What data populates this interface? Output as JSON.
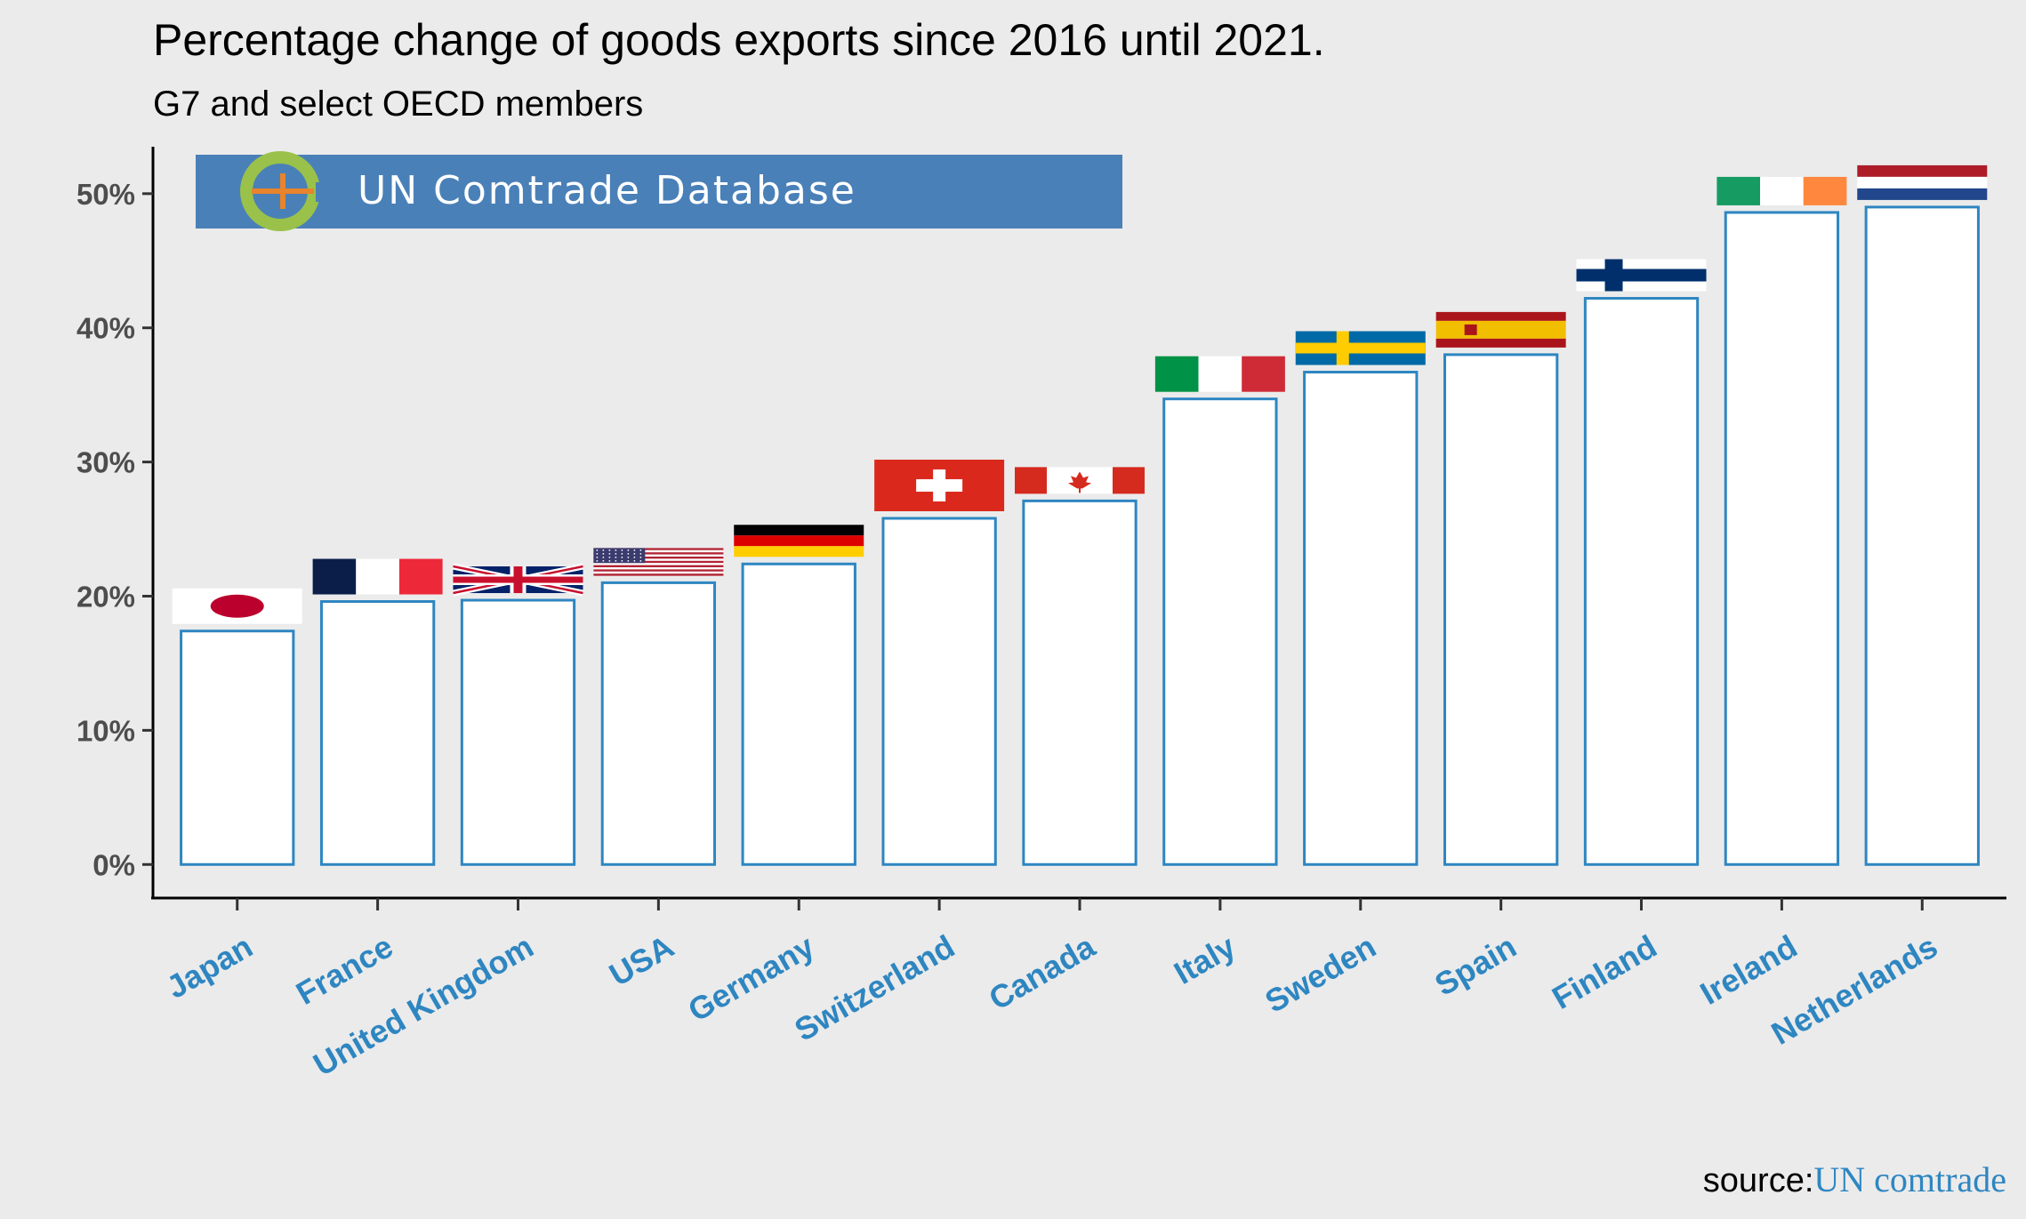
{
  "title": "Percentage change of goods exports since 2016 until 2021.",
  "subtitle": "G7 and select OECD members",
  "banner": {
    "text": "UN Comtrade Database",
    "logo_icon": "comtrade-logo-icon",
    "background_color": "#4a80b8"
  },
  "source": {
    "label": "source:",
    "link_text": "UN comtrade"
  },
  "colors": {
    "bar_fill": "#ffffff",
    "bar_stroke": "#2e86c1",
    "tick_label": "#2e86c1",
    "panel_bg": "#ebebeb"
  },
  "chart_data": {
    "type": "bar",
    "title": "Percentage change of goods exports since 2016 until 2021.",
    "subtitle": "G7 and select OECD members",
    "categories": [
      "Japan",
      "France",
      "United Kingdom",
      "USA",
      "Germany",
      "Switzerland",
      "Canada",
      "Italy",
      "Sweden",
      "Spain",
      "Finland",
      "Ireland",
      "Netherlands"
    ],
    "values": [
      17.4,
      19.6,
      19.7,
      21.0,
      22.4,
      25.8,
      27.1,
      34.7,
      36.7,
      38.0,
      42.2,
      48.6,
      49.0
    ],
    "flag_icons": [
      "japan-flag-icon",
      "france-flag-icon",
      "united-kingdom-flag-icon",
      "usa-flag-icon",
      "germany-flag-icon",
      "switzerland-flag-icon",
      "canada-flag-icon",
      "italy-flag-icon",
      "sweden-flag-icon",
      "spain-flag-icon",
      "finland-flag-icon",
      "ireland-flag-icon",
      "netherlands-flag-icon"
    ],
    "y_ticks": [
      0,
      10,
      20,
      30,
      40,
      50
    ],
    "y_tick_labels": [
      "0%",
      "10%",
      "20%",
      "30%",
      "40%",
      "50%"
    ],
    "ylim": [
      -2.5,
      53.5
    ],
    "unit": "%",
    "grid": false,
    "legend": "none"
  }
}
